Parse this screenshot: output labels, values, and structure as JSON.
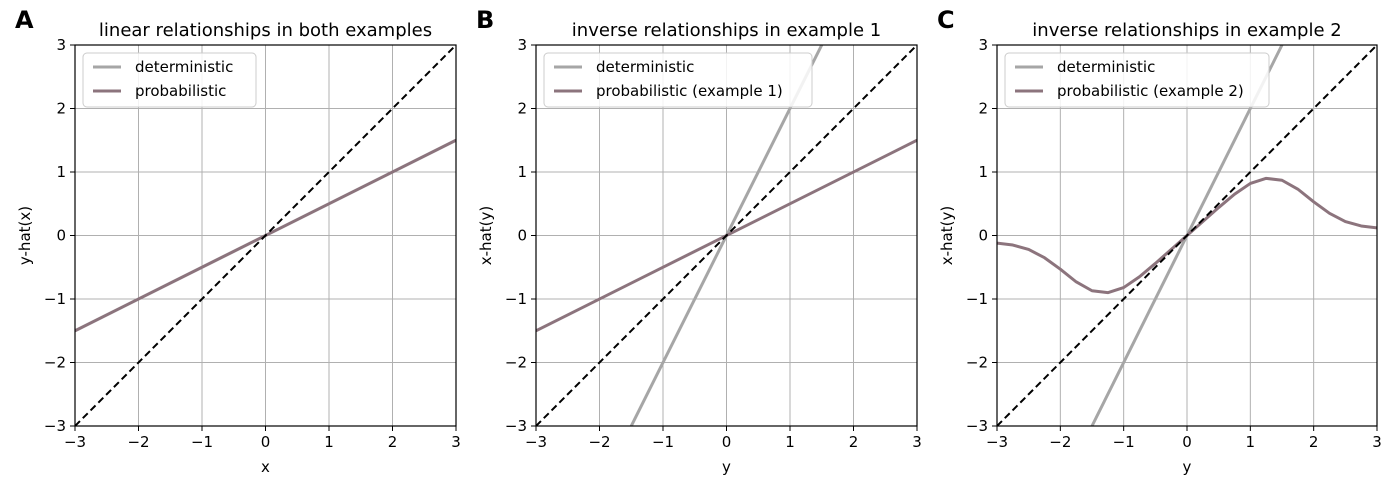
{
  "colors": {
    "deterministic": "#a6a6a6",
    "probabilistic": "#8c747d",
    "identity": "#000000",
    "grid": "#b0b0b0"
  },
  "chart_data": [
    {
      "panel": "A",
      "type": "line",
      "title": "linear relationships in both examples",
      "xlabel": "x",
      "ylabel": "y-hat(x)",
      "xlim": [
        -3,
        3
      ],
      "ylim": [
        -3,
        3
      ],
      "xticks": [
        "−3",
        "−2",
        "−1",
        "0",
        "1",
        "2",
        "3"
      ],
      "yticks": [
        "−3",
        "−2",
        "−1",
        "0",
        "1",
        "2",
        "3"
      ],
      "grid": true,
      "legend_position": "top-left",
      "series": [
        {
          "name": "deterministic",
          "color": "#a6a6a6",
          "x": [
            -3,
            3
          ],
          "y": [
            -1.5,
            1.5
          ]
        },
        {
          "name": "probabilistic",
          "color": "#8c747d",
          "x": [
            -3,
            3
          ],
          "y": [
            -1.5,
            1.5
          ]
        }
      ],
      "identity_line": {
        "x": [
          -3,
          3
        ],
        "y": [
          -3,
          3
        ],
        "style": "dashed"
      }
    },
    {
      "panel": "B",
      "type": "line",
      "title": "inverse relationships in example 1",
      "xlabel": "y",
      "ylabel": "x-hat(y)",
      "xlim": [
        -3,
        3
      ],
      "ylim": [
        -3,
        3
      ],
      "xticks": [
        "−3",
        "−2",
        "−1",
        "0",
        "1",
        "2",
        "3"
      ],
      "yticks": [
        "−3",
        "−2",
        "−1",
        "0",
        "1",
        "2",
        "3"
      ],
      "grid": true,
      "legend_position": "top-left",
      "series": [
        {
          "name": "deterministic",
          "color": "#a6a6a6",
          "x": [
            -1.5,
            1.5
          ],
          "y": [
            -3,
            3
          ]
        },
        {
          "name": "probabilistic (example 1)",
          "color": "#8c747d",
          "x": [
            -3,
            3
          ],
          "y": [
            -1.5,
            1.5
          ]
        }
      ],
      "identity_line": {
        "x": [
          -3,
          3
        ],
        "y": [
          -3,
          3
        ],
        "style": "dashed"
      }
    },
    {
      "panel": "C",
      "type": "line",
      "title": "inverse relationships in example 2",
      "xlabel": "y",
      "ylabel": "x-hat(y)",
      "xlim": [
        -3,
        3
      ],
      "ylim": [
        -3,
        3
      ],
      "xticks": [
        "−3",
        "−2",
        "−1",
        "0",
        "1",
        "2",
        "3"
      ],
      "yticks": [
        "−3",
        "−2",
        "−1",
        "0",
        "1",
        "2",
        "3"
      ],
      "grid": true,
      "legend_position": "top-left",
      "series": [
        {
          "name": "deterministic",
          "color": "#a6a6a6",
          "x": [
            -1.5,
            1.5
          ],
          "y": [
            -3,
            3
          ]
        },
        {
          "name": "probabilistic (example 2)",
          "color": "#8c747d",
          "x": [
            -3,
            -2.75,
            -2.5,
            -2.25,
            -2,
            -1.75,
            -1.5,
            -1.25,
            -1,
            -0.75,
            -0.5,
            -0.25,
            0,
            0.25,
            0.5,
            0.75,
            1,
            1.25,
            1.5,
            1.75,
            2,
            2.25,
            2.5,
            2.75,
            3
          ],
          "y": [
            -0.12,
            -0.15,
            -0.22,
            -0.35,
            -0.53,
            -0.73,
            -0.87,
            -0.9,
            -0.82,
            -0.65,
            -0.44,
            -0.22,
            0,
            0.22,
            0.44,
            0.65,
            0.82,
            0.9,
            0.87,
            0.73,
            0.53,
            0.35,
            0.22,
            0.15,
            0.12
          ]
        }
      ],
      "identity_line": {
        "x": [
          -3,
          3
        ],
        "y": [
          -3,
          3
        ],
        "style": "dashed"
      }
    }
  ]
}
